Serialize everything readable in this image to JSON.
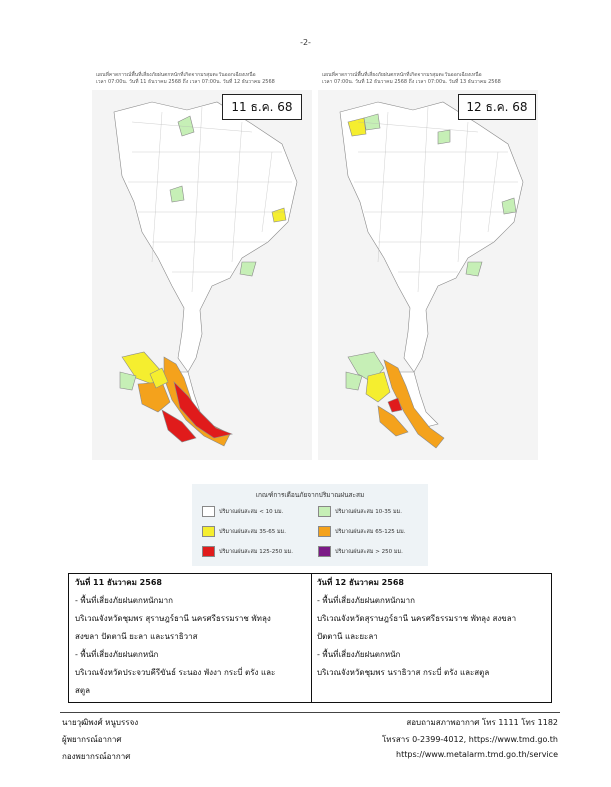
{
  "page_number": "-2-",
  "maps": {
    "left": {
      "caption_line1": "แผนที่คาดการณ์พื้นที่เสี่ยงภัยฝนตกหนักที่เกิดจากมรสุมตะวันออกเฉียงเหนือ",
      "caption_line2": "เวลา 07:00น. วันที่ 11 ธันวาคม 2568 ถึง เวลา 07:00น. วันที่ 12 ธันวาคม 2568",
      "date_label": "11 ธ.ค. 68"
    },
    "right": {
      "caption_line1": "แผนที่คาดการณ์พื้นที่เสี่ยงภัยฝนตกหนักที่เกิดจากมรสุมตะวันออกเฉียงเหนือ",
      "caption_line2": "เวลา 07:00น. วันที่ 12 ธันวาคม 2568 ถึง เวลา 07:00น. วันที่ 13 ธันวาคม 2568",
      "date_label": "12 ธ.ค. 68"
    }
  },
  "legend": {
    "title": "เกณฑ์การเตือนภัยจากปริมาณฝนสะสม",
    "items": [
      {
        "label": "ปริมาณฝนสะสม < 10 มม.",
        "color": "#ffffff"
      },
      {
        "label": "ปริมาณฝนสะสม 10-35 มม.",
        "color": "#c6efb6"
      },
      {
        "label": "ปริมาณฝนสะสม 35-65 มม.",
        "color": "#f5ee2f"
      },
      {
        "label": "ปริมาณฝนสะสม 65-125 มม.",
        "color": "#f4a21c"
      },
      {
        "label": "ปริมาณฝนสะสม 125-250 มม.",
        "color": "#e01b1b"
      },
      {
        "label": "ปริมาณฝนสะสม > 250 มม.",
        "color": "#7b1a86"
      }
    ]
  },
  "table": {
    "left": {
      "heading": "วันที่ 11 ธันวาคม 2568",
      "lines": [
        "- พื้นที่เสี่ยงภัยฝนตกหนักมาก",
        "บริเวณจังหวัดชุมพร สุราษฎร์ธานี นครศรีธรรมราช พัทลุง",
        "สงขลา ปัตตานี ยะลา และนราธิวาส",
        "- พื้นที่เสี่ยงภัยฝนตกหนัก",
        "บริเวณจังหวัดประจวบคีรีขันธ์ ระนอง พังงา กระบี่ ตรัง และ",
        "สตูล"
      ]
    },
    "right": {
      "heading": "วันที่ 12 ธันวาคม 2568",
      "lines": [
        "- พื้นที่เสี่ยงภัยฝนตกหนักมาก",
        "บริเวณจังหวัดสุราษฎร์ธานี นครศรีธรรมราช พัทลุง สงขลา",
        "ปัตตานี และยะลา",
        "- พื้นที่เสี่ยงภัยฝนตกหนัก",
        "บริเวณจังหวัดชุมพร นราธิวาส กระบี่ ตรัง และสตูล"
      ]
    }
  },
  "footer": {
    "name": "นายวุฒิพงศ์ หนูบรรจง",
    "position": "ผู้พยากรณ์อากาศ",
    "division": "กองพยากรณ์อากาศ",
    "phone": "สอบถามสภาพอากาศ โทร 1111 โทร 1182",
    "fax": "โทรสาร 0-2399-4012, https://www.tmd.go.th",
    "service_url": "https://www.metalarm.tmd.go.th/service"
  }
}
